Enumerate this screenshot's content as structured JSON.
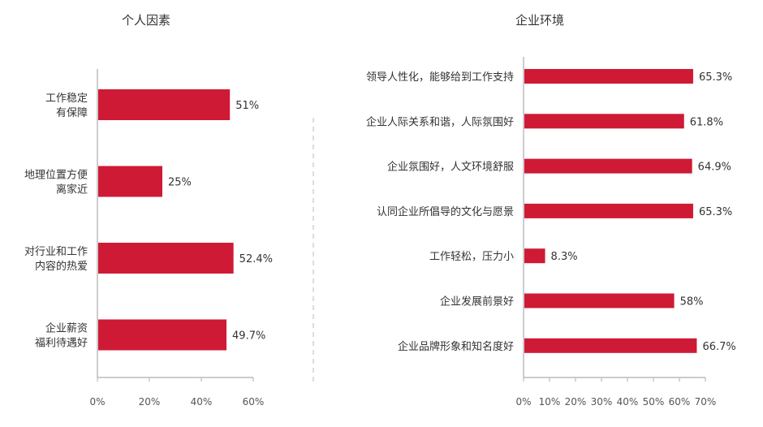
{
  "chart_data": [
    {
      "type": "bar",
      "orientation": "horizontal",
      "title": "个人因素",
      "categories": [
        [
          "工作稳定",
          "有保障"
        ],
        [
          "地理位置方便",
          "离家近"
        ],
        [
          "对行业和工作",
          "内容的热爱"
        ],
        [
          "企业薪资",
          "福利待遇好"
        ]
      ],
      "values": [
        51,
        25,
        52.4,
        49.7
      ],
      "value_labels": [
        "51%",
        "25%",
        "52.4%",
        "49.7%"
      ],
      "xlim": [
        0,
        60
      ],
      "xticks": [
        "0%",
        "20%",
        "40%",
        "60%"
      ],
      "bar_color": "#cf1a36",
      "grid": false,
      "legend": "none"
    },
    {
      "type": "bar",
      "orientation": "horizontal",
      "title": "企业环境",
      "categories": [
        [
          "领导人性化，能够给到工作支持"
        ],
        [
          "企业人际关系和谐，人际氛围好"
        ],
        [
          "企业氛围好，人文环境舒服"
        ],
        [
          "认同企业所倡导的文化与愿景"
        ],
        [
          "工作轻松，压力小"
        ],
        [
          "企业发展前景好"
        ],
        [
          "企业品牌形象和知名度好"
        ]
      ],
      "values": [
        65.3,
        61.8,
        64.9,
        65.3,
        8.3,
        58,
        66.7
      ],
      "value_labels": [
        "65.3%",
        "61.8%",
        "64.9%",
        "65.3%",
        "8.3%",
        "58%",
        "66.7%"
      ],
      "xlim": [
        0,
        70
      ],
      "xticks": [
        "0%",
        "10%",
        "20%",
        "30%",
        "40%",
        "50%",
        "60%",
        "70%"
      ],
      "bar_color": "#cf1a36",
      "grid": false,
      "legend": "none"
    }
  ]
}
